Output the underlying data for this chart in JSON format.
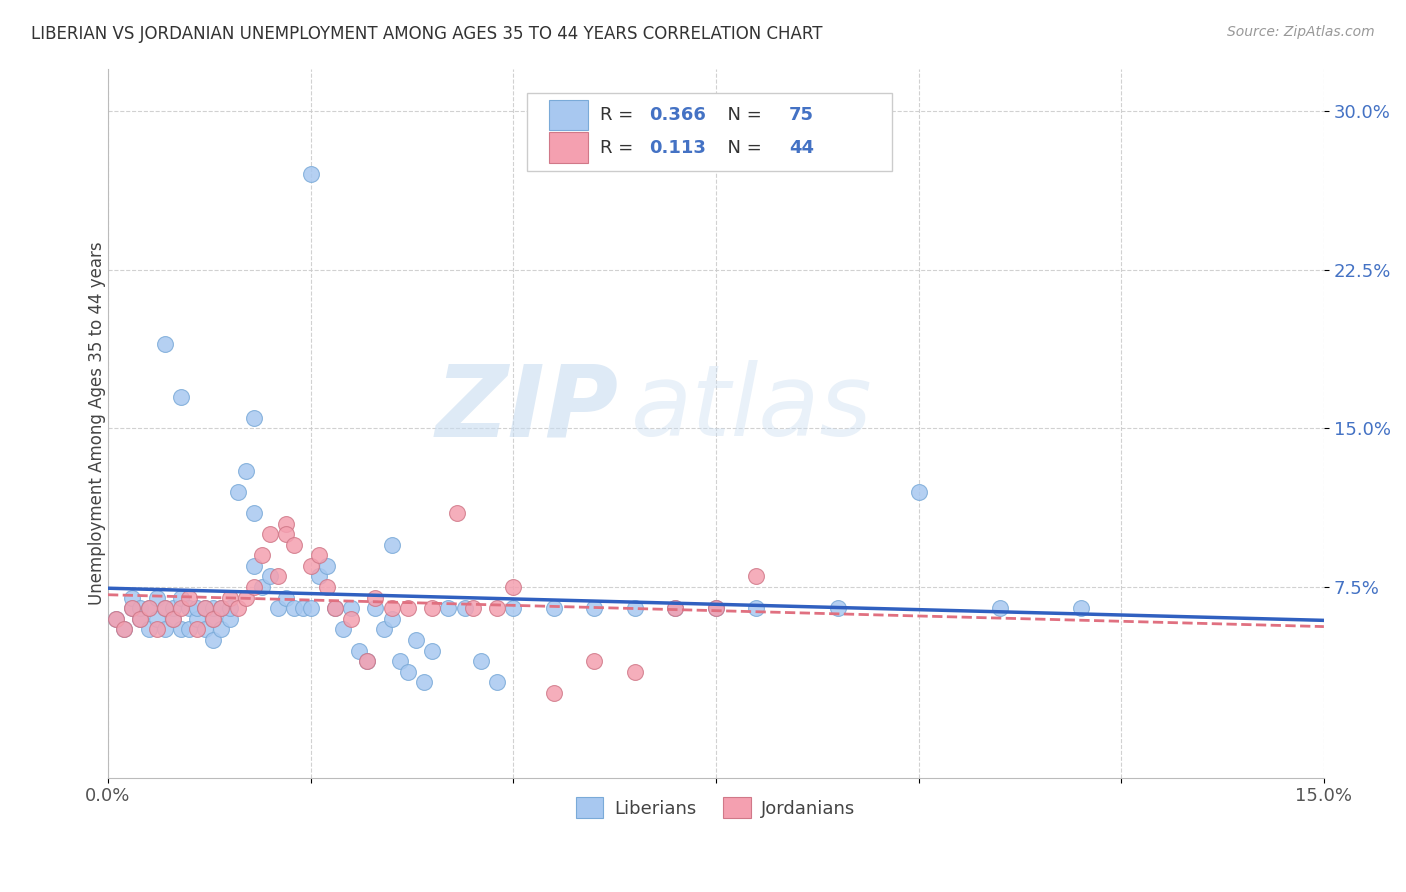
{
  "title": "LIBERIAN VS JORDANIAN UNEMPLOYMENT AMONG AGES 35 TO 44 YEARS CORRELATION CHART",
  "source": "Source: ZipAtlas.com",
  "ylabel": "Unemployment Among Ages 35 to 44 years",
  "xlim": [
    0.0,
    0.15
  ],
  "ylim": [
    -0.015,
    0.32
  ],
  "liberian_color": "#A8C8F0",
  "liberian_edge": "#7AAAD8",
  "jordanian_color": "#F4A0B0",
  "jordanian_edge": "#D07888",
  "liberian_line_color": "#3060C0",
  "jordanian_line_color": "#E07080",
  "R_liberian": "0.366",
  "N_liberian": "75",
  "R_jordanian": "0.113",
  "N_jordanian": "44",
  "watermark_zip": "ZIP",
  "watermark_atlas": "atlas",
  "legend_R_color": "#4472C4",
  "legend_N_color": "#4472C4",
  "ytick_color": "#4472C4",
  "liberian_x": [
    0.001,
    0.002,
    0.003,
    0.003,
    0.004,
    0.004,
    0.005,
    0.005,
    0.006,
    0.006,
    0.007,
    0.007,
    0.008,
    0.008,
    0.009,
    0.009,
    0.01,
    0.01,
    0.011,
    0.011,
    0.012,
    0.012,
    0.013,
    0.013,
    0.013,
    0.014,
    0.014,
    0.015,
    0.015,
    0.016,
    0.017,
    0.018,
    0.018,
    0.019,
    0.02,
    0.021,
    0.022,
    0.023,
    0.024,
    0.025,
    0.026,
    0.027,
    0.028,
    0.029,
    0.03,
    0.031,
    0.032,
    0.033,
    0.034,
    0.035,
    0.036,
    0.037,
    0.038,
    0.039,
    0.04,
    0.042,
    0.044,
    0.046,
    0.048,
    0.05,
    0.055,
    0.06,
    0.065,
    0.07,
    0.075,
    0.08,
    0.09,
    0.1,
    0.11,
    0.12,
    0.007,
    0.009,
    0.018,
    0.025,
    0.035
  ],
  "liberian_y": [
    0.06,
    0.055,
    0.065,
    0.07,
    0.06,
    0.065,
    0.055,
    0.065,
    0.06,
    0.07,
    0.055,
    0.065,
    0.06,
    0.065,
    0.055,
    0.07,
    0.065,
    0.055,
    0.06,
    0.065,
    0.055,
    0.065,
    0.05,
    0.06,
    0.065,
    0.055,
    0.065,
    0.06,
    0.065,
    0.12,
    0.13,
    0.11,
    0.085,
    0.075,
    0.08,
    0.065,
    0.07,
    0.065,
    0.065,
    0.065,
    0.08,
    0.085,
    0.065,
    0.055,
    0.065,
    0.045,
    0.04,
    0.065,
    0.055,
    0.06,
    0.04,
    0.035,
    0.05,
    0.03,
    0.045,
    0.065,
    0.065,
    0.04,
    0.03,
    0.065,
    0.065,
    0.065,
    0.065,
    0.065,
    0.065,
    0.065,
    0.065,
    0.12,
    0.065,
    0.065,
    0.19,
    0.165,
    0.155,
    0.27,
    0.095
  ],
  "jordanian_x": [
    0.001,
    0.002,
    0.003,
    0.004,
    0.005,
    0.006,
    0.007,
    0.008,
    0.009,
    0.01,
    0.011,
    0.012,
    0.013,
    0.014,
    0.015,
    0.016,
    0.017,
    0.018,
    0.019,
    0.02,
    0.021,
    0.022,
    0.022,
    0.023,
    0.025,
    0.026,
    0.027,
    0.028,
    0.03,
    0.032,
    0.033,
    0.035,
    0.037,
    0.04,
    0.043,
    0.045,
    0.048,
    0.05,
    0.055,
    0.06,
    0.065,
    0.07,
    0.075,
    0.08
  ],
  "jordanian_y": [
    0.06,
    0.055,
    0.065,
    0.06,
    0.065,
    0.055,
    0.065,
    0.06,
    0.065,
    0.07,
    0.055,
    0.065,
    0.06,
    0.065,
    0.07,
    0.065,
    0.07,
    0.075,
    0.09,
    0.1,
    0.08,
    0.105,
    0.1,
    0.095,
    0.085,
    0.09,
    0.075,
    0.065,
    0.06,
    0.04,
    0.07,
    0.065,
    0.065,
    0.065,
    0.11,
    0.065,
    0.065,
    0.075,
    0.025,
    0.04,
    0.035,
    0.065,
    0.065,
    0.08
  ]
}
